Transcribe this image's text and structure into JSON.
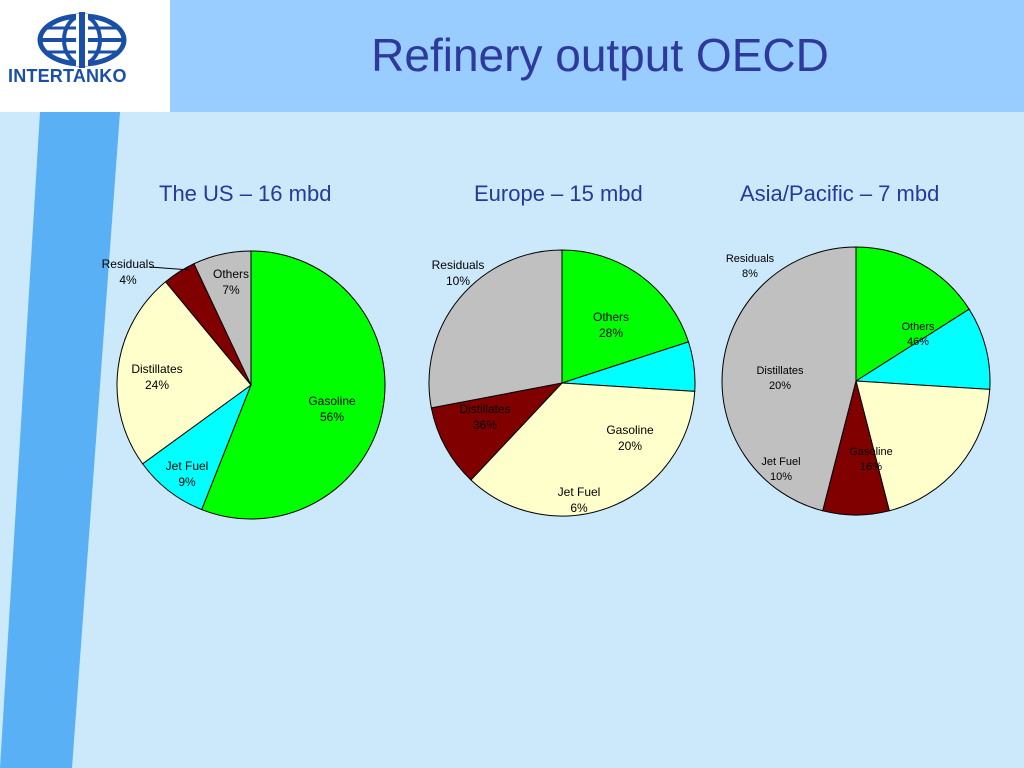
{
  "logo": {
    "text": "INTERTANKO"
  },
  "slide": {
    "title": "Refinery output OECD"
  },
  "colors": {
    "Gasoline": "#00ff00",
    "Jet Fuel": "#00ffff",
    "Distillates": "#ffffcc",
    "Residuals": "#800000",
    "Others": "#c0c0c0"
  },
  "chart_data": [
    {
      "type": "pie",
      "title": "The US – 16 mbd",
      "slices": [
        {
          "label": "Gasoline",
          "value": 56,
          "display": "56%"
        },
        {
          "label": "Jet Fuel",
          "value": 9,
          "display": "9%"
        },
        {
          "label": "Distillates",
          "value": 24,
          "display": "24%"
        },
        {
          "label": "Residuals",
          "value": 4,
          "display": "4%"
        },
        {
          "label": "Others",
          "value": 7,
          "display": "7%"
        }
      ]
    },
    {
      "type": "pie",
      "title": "Europe – 15 mbd",
      "slices": [
        {
          "label": "Gasoline",
          "value": 20,
          "display": "20%"
        },
        {
          "label": "Jet Fuel",
          "value": 6,
          "display": "6%"
        },
        {
          "label": "Distillates",
          "value": 36,
          "display": "36%"
        },
        {
          "label": "Residuals",
          "value": 10,
          "display": "10%"
        },
        {
          "label": "Others",
          "value": 28,
          "display": "28%"
        }
      ]
    },
    {
      "type": "pie",
      "title": "Asia/Pacific – 7 mbd",
      "slices": [
        {
          "label": "Gasoline",
          "value": 16,
          "display": "16%"
        },
        {
          "label": "Jet Fuel",
          "value": 10,
          "display": "10%"
        },
        {
          "label": "Distillates",
          "value": 20,
          "display": "20%"
        },
        {
          "label": "Residuals",
          "value": 8,
          "display": "8%"
        },
        {
          "label": "Others",
          "value": 46,
          "display": "46%"
        }
      ]
    }
  ]
}
